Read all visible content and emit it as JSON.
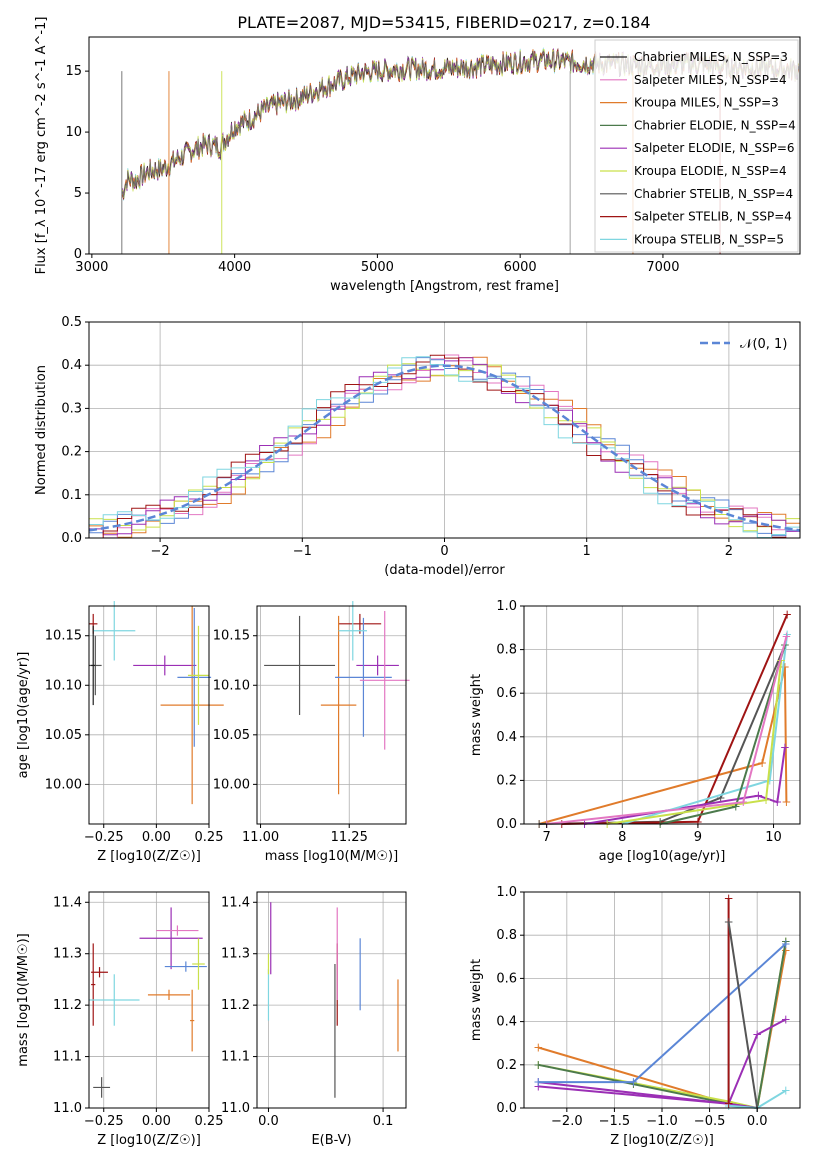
{
  "chart_data": [
    {
      "type": "line",
      "title": "PLATE=2087, MJD=53415, FIBERID=0217, z=0.184",
      "xlabel": "wavelength [Angstrom, rest frame]",
      "ylabel": "Flux [f_λ 10^-17 erg cm^-2 s^-1 A^-1]",
      "xlim": [
        2980,
        7960
      ],
      "ylim": [
        0,
        17.8
      ],
      "xticks": [
        "3000",
        "4000",
        "5000",
        "6000",
        "7000"
      ],
      "yticks": [
        "0",
        "5",
        "10",
        "15"
      ],
      "legend": "top-right",
      "legend_entries": [
        "Chabrier MILES, N_SSP=3",
        "Salpeter MILES, N_SSP=4",
        "Kroupa MILES, N_SSP=3",
        "Chabrier ELODIE, N_SSP=4",
        "Salpeter ELODIE, N_SSP=6",
        "Kroupa ELODIE, N_SSP=4",
        "Chabrier STELIB, N_SSP=4",
        "Salpeter STELIB, N_SSP=4",
        "Kroupa STELIB, N_SSP=5"
      ],
      "series": [
        {
          "x": [
            3200,
            3250,
            3300,
            3400,
            3500,
            3600,
            3700,
            3800,
            3900,
            4000,
            4100,
            4200,
            4300,
            4400,
            4500,
            4600,
            4700,
            4800,
            4900,
            5000,
            5200,
            5400,
            5600,
            5800,
            6000,
            6200,
            6400,
            6600,
            6800,
            7000,
            7200,
            7400,
            7600,
            7800,
            7950
          ],
          "y": [
            4.5,
            6.2,
            6.0,
            6.8,
            7.0,
            7.8,
            8.5,
            9.0,
            8.8,
            10.5,
            11.0,
            11.8,
            12.3,
            12.6,
            13.0,
            13.6,
            14.0,
            14.5,
            14.9,
            15.0,
            15.2,
            15.2,
            15.3,
            15.5,
            15.8,
            15.9,
            15.7,
            15.6,
            15.5,
            15.5,
            15.6,
            15.4,
            15.3,
            15.2,
            15.1
          ]
        }
      ]
    },
    {
      "type": "bar",
      "xlabel": "(data-model)/error",
      "ylabel": "Normed distribution",
      "xlim": [
        -2.5,
        2.5
      ],
      "ylim": [
        0,
        0.5
      ],
      "xticks": [
        "−2",
        "−1",
        "0",
        "1",
        "2"
      ],
      "yticks": [
        "0.0",
        "0.1",
        "0.2",
        "0.3",
        "0.4",
        "0.5"
      ],
      "legend_entries": [
        "𝒩(0, 1)"
      ],
      "legend": "top-right"
    },
    {
      "type": "scatter",
      "xlabel": "Z [log10(Z/Z☉)]",
      "ylabel": "age [log10(age/yr)]",
      "xlim": [
        -0.32,
        0.25
      ],
      "ylim": [
        9.96,
        10.18
      ],
      "xticks": [
        "−0.25",
        "0.00",
        "0.25"
      ],
      "yticks": [
        "10.00",
        "10.05",
        "10.10",
        "10.15"
      ]
    },
    {
      "type": "scatter",
      "xlabel": "mass [log10(M/M☉)]",
      "ylabel": "",
      "xlim": [
        10.99,
        11.41
      ],
      "ylim": [
        9.96,
        10.18
      ],
      "xticks": [
        "11.00",
        "11.25"
      ],
      "yticks": [
        "10.00",
        "10.05",
        "10.10",
        "10.15"
      ]
    },
    {
      "type": "line",
      "xlabel": "age [log10(age/yr)]",
      "ylabel": "mass weight",
      "xlim": [
        6.7,
        10.35
      ],
      "ylim": [
        0,
        1.0
      ],
      "xticks": [
        "7",
        "8",
        "9",
        "10"
      ],
      "yticks": [
        "0.0",
        "0.2",
        "0.4",
        "0.6",
        "0.8",
        "1.0"
      ]
    },
    {
      "type": "scatter",
      "xlabel": "Z [log10(Z/Z☉)]",
      "ylabel": "mass [log10(M/M☉)]",
      "xlim": [
        -0.32,
        0.25
      ],
      "ylim": [
        11.0,
        11.42
      ],
      "xticks": [
        "−0.25",
        "0.00",
        "0.25"
      ],
      "yticks": [
        "11.0",
        "11.1",
        "11.2",
        "11.3",
        "11.4"
      ]
    },
    {
      "type": "scatter",
      "xlabel": "E(B-V)",
      "ylabel": "",
      "xlim": [
        -0.01,
        0.12
      ],
      "ylim": [
        11.0,
        11.42
      ],
      "xticks": [
        "0.0",
        "0.1"
      ],
      "yticks": [
        "11.0",
        "11.1",
        "11.2",
        "11.3",
        "11.4"
      ]
    },
    {
      "type": "line",
      "xlabel": "Z [log10(Z/Z☉)]",
      "ylabel": "mass weight",
      "xlim": [
        -2.45,
        0.45
      ],
      "ylim": [
        0,
        1.0
      ],
      "xticks": [
        "−2.0",
        "−1.5",
        "−1.0",
        "−0.5",
        "0.0"
      ],
      "yticks": [
        "0.0",
        "0.2",
        "0.4",
        "0.6",
        "0.8",
        "1.0"
      ]
    }
  ],
  "colors": [
    "#1f1f1f",
    "#e377c2",
    "#e07b2b",
    "#4c7a4c",
    "#9b2fb5",
    "#c9e04a",
    "#555555",
    "#9f1414",
    "#7fd6e0",
    "#5b86d6"
  ]
}
